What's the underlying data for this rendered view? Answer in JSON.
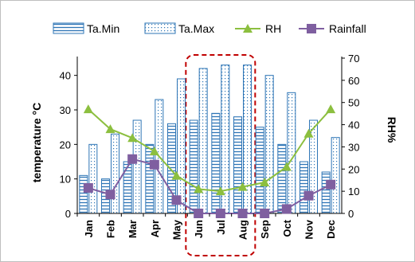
{
  "chart_data": {
    "type": "bar",
    "categories": [
      "Jan",
      "Feb",
      "Mar",
      "Apr",
      "May",
      "Jun",
      "Jul",
      "Aug",
      "Sep",
      "Oct",
      "Nov",
      "Dec"
    ],
    "series": [
      {
        "name": "Ta.Min",
        "kind": "bar",
        "axis": "left",
        "color": "#2e75b6",
        "pattern": "horizontal-lines",
        "values": [
          11,
          10,
          15,
          20,
          26,
          27,
          29,
          28,
          25,
          20,
          15,
          12
        ]
      },
      {
        "name": "Ta.Max",
        "kind": "bar",
        "axis": "left",
        "color": "#2e75b6",
        "pattern": "dots",
        "values": [
          20,
          23,
          27,
          33,
          39,
          42,
          43,
          43,
          40,
          35,
          27,
          22
        ]
      },
      {
        "name": "RH",
        "kind": "line",
        "axis": "right",
        "color": "#8cbf3f",
        "marker": "triangle",
        "values": [
          47,
          38,
          34,
          28,
          17,
          11,
          10,
          12,
          14,
          21,
          36,
          47
        ]
      },
      {
        "name": "Rainfall",
        "kind": "line",
        "axis": "right",
        "color": "#7f5fa0",
        "marker": "square",
        "values": [
          11.5,
          8.5,
          24.5,
          22,
          6,
          0,
          0,
          0,
          0,
          2,
          8,
          13
        ]
      }
    ],
    "ylabel": "temperature °C",
    "ylim": [
      0,
      45
    ],
    "yticks": [
      0,
      10,
      20,
      30,
      40
    ],
    "y2label": "RH%",
    "y2lim": [
      0,
      70
    ],
    "y2ticks": [
      0,
      10,
      20,
      30,
      40,
      50,
      60,
      70
    ],
    "legend": "top",
    "grid": false,
    "highlight": {
      "from": "Jun",
      "to": "Aug",
      "style": "dashed",
      "color": "#c00000"
    }
  }
}
